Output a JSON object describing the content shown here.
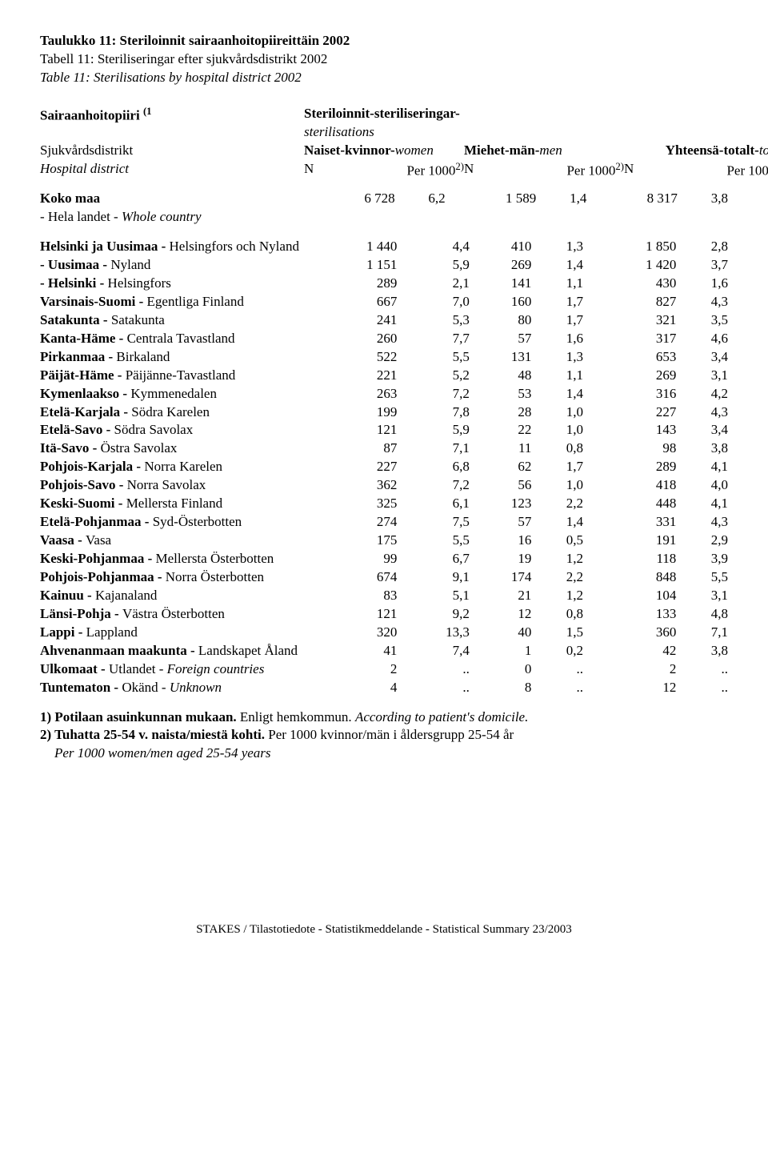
{
  "titles": {
    "fi": "Taulukko 11: Steriloinnit sairaanhoitopiireittäin 2002",
    "sv": "Tabell 11: Steriliseringar efter sjukvårdsdistrikt 2002",
    "en": "Table 11: Sterilisations by hospital district 2002"
  },
  "headers": {
    "row_label_fi": "Sairaanhoitopiiri",
    "row_label_fi_sup": "(1",
    "row_label_sv": "Sjukvårdsdistrikt",
    "row_label_en": "Hospital district",
    "group_header": "Steriloinnit-steriliseringar-",
    "group_header_italic": "sterilisations",
    "naiset": "Naiset-kvinnor-",
    "naiset_italic": "women",
    "miehet": "Miehet-män-",
    "miehet_italic": "men",
    "yhteensa": "Yhteensä-totalt-",
    "yhteensa_italic": "total",
    "N": "N",
    "per1000": "Per 1000",
    "per1000_sup": "2)"
  },
  "totals": {
    "label_bold": "Koko maa",
    "label_plain": " - Hela landet - ",
    "label_italic": "Whole country",
    "n1": "6 728",
    "p1": "6,2",
    "n2": "1 589",
    "p2": "1,4",
    "n3": "8 317",
    "p3": "3,8"
  },
  "rows": [
    {
      "bold": "Helsinki ja Uusimaa -",
      "plain": " Helsingfors och Nyland",
      "italic": "",
      "n1": "1 440",
      "p1": "4,4",
      "n2": "410",
      "p2": "1,3",
      "n3": "1 850",
      "p3": "2,8"
    },
    {
      "bold": "-  Uusimaa - ",
      "plain": "Nyland",
      "italic": "",
      "n1": "1 151",
      "p1": "5,9",
      "n2": "269",
      "p2": "1,4",
      "n3": "1 420",
      "p3": "3,7"
    },
    {
      "bold": "-  Helsinki - ",
      "plain": "Helsingfors",
      "italic": "",
      "n1": "289",
      "p1": "2,1",
      "n2": "141",
      "p2": "1,1",
      "n3": "430",
      "p3": "1,6"
    },
    {
      "bold": "Varsinais-Suomi - ",
      "plain": "Egentliga Finland",
      "italic": "",
      "n1": "667",
      "p1": "7,0",
      "n2": "160",
      "p2": "1,7",
      "n3": "827",
      "p3": "4,3"
    },
    {
      "bold": "Satakunta - ",
      "plain": "Satakunta",
      "italic": "",
      "n1": "241",
      "p1": "5,3",
      "n2": "80",
      "p2": "1,7",
      "n3": "321",
      "p3": "3,5"
    },
    {
      "bold": "Kanta-Häme - ",
      "plain": "Centrala Tavastland",
      "italic": "",
      "n1": "260",
      "p1": "7,7",
      "n2": "57",
      "p2": "1,6",
      "n3": "317",
      "p3": "4,6"
    },
    {
      "bold": "Pirkanmaa - ",
      "plain": "Birkaland",
      "italic": "",
      "n1": "522",
      "p1": "5,5",
      "n2": "131",
      "p2": "1,3",
      "n3": "653",
      "p3": "3,4"
    },
    {
      "bold": "Päijät-Häme - ",
      "plain": "Päijänne-Tavastland",
      "italic": "",
      "n1": "221",
      "p1": "5,2",
      "n2": "48",
      "p2": "1,1",
      "n3": "269",
      "p3": "3,1"
    },
    {
      "bold": "Kymenlaakso - ",
      "plain": "Kymmenedalen",
      "italic": "",
      "n1": "263",
      "p1": "7,2",
      "n2": "53",
      "p2": "1,4",
      "n3": "316",
      "p3": "4,2"
    },
    {
      "bold": "Etelä-Karjala - ",
      "plain": "Södra Karelen",
      "italic": "",
      "n1": "199",
      "p1": "7,8",
      "n2": "28",
      "p2": "1,0",
      "n3": "227",
      "p3": "4,3"
    },
    {
      "bold": "Etelä-Savo - ",
      "plain": "Södra Savolax",
      "italic": "",
      "n1": "121",
      "p1": "5,9",
      "n2": "22",
      "p2": "1,0",
      "n3": "143",
      "p3": "3,4"
    },
    {
      "bold": "Itä-Savo - ",
      "plain": "Östra Savolax",
      "italic": "",
      "n1": "87",
      "p1": "7,1",
      "n2": "11",
      "p2": "0,8",
      "n3": "98",
      "p3": "3,8"
    },
    {
      "bold": "Pohjois-Karjala - ",
      "plain": "Norra Karelen",
      "italic": "",
      "n1": "227",
      "p1": "6,8",
      "n2": "62",
      "p2": "1,7",
      "n3": "289",
      "p3": "4,1"
    },
    {
      "bold": "Pohjois-Savo - ",
      "plain": "Norra Savolax",
      "italic": "",
      "n1": "362",
      "p1": "7,2",
      "n2": "56",
      "p2": "1,0",
      "n3": "418",
      "p3": "4,0"
    },
    {
      "bold": "Keski-Suomi - ",
      "plain": "Mellersta Finland",
      "italic": "",
      "n1": "325",
      "p1": "6,1",
      "n2": "123",
      "p2": "2,2",
      "n3": "448",
      "p3": "4,1"
    },
    {
      "bold": "Etelä-Pohjanmaa - ",
      "plain": "Syd-Österbotten",
      "italic": "",
      "n1": "274",
      "p1": "7,5",
      "n2": "57",
      "p2": "1,4",
      "n3": "331",
      "p3": "4,3"
    },
    {
      "bold": "Vaasa - ",
      "plain": "Vasa",
      "italic": "",
      "n1": "175",
      "p1": "5,5",
      "n2": "16",
      "p2": "0,5",
      "n3": "191",
      "p3": "2,9"
    },
    {
      "bold": "Keski-Pohjanmaa - ",
      "plain": "Mellersta Österbotten",
      "italic": "",
      "n1": "99",
      "p1": "6,7",
      "n2": "19",
      "p2": "1,2",
      "n3": "118",
      "p3": "3,9"
    },
    {
      "bold": "Pohjois-Pohjanmaa - ",
      "plain": "Norra Österbotten",
      "italic": "",
      "n1": "674",
      "p1": "9,1",
      "n2": "174",
      "p2": "2,2",
      "n3": "848",
      "p3": "5,5"
    },
    {
      "bold": "Kainuu - ",
      "plain": "Kajanaland",
      "italic": "",
      "n1": "83",
      "p1": "5,1",
      "n2": "21",
      "p2": "1,2",
      "n3": "104",
      "p3": "3,1"
    },
    {
      "bold": "Länsi-Pohja - ",
      "plain": "Västra Österbotten",
      "italic": "",
      "n1": "121",
      "p1": "9,2",
      "n2": "12",
      "p2": "0,8",
      "n3": "133",
      "p3": "4,8"
    },
    {
      "bold": "Lappi - ",
      "plain": "Lappland",
      "italic": "",
      "n1": "320",
      "p1": "13,3",
      "n2": "40",
      "p2": "1,5",
      "n3": "360",
      "p3": "7,1"
    },
    {
      "bold": "Ahvenanmaan maakunta - ",
      "plain": "Landskapet Åland",
      "italic": "",
      "n1": "41",
      "p1": "7,4",
      "n2": "1",
      "p2": "0,2",
      "n3": "42",
      "p3": "3,8"
    },
    {
      "bold": "Ulkomaat - ",
      "plain": "Utlandet - ",
      "italic": "Foreign countries",
      "n1": "2",
      "p1": "..",
      "n2": "0",
      "p2": "..",
      "n3": "2",
      "p3": ".."
    },
    {
      "bold": "Tuntematon - ",
      "plain": "Okänd - ",
      "italic": "Unknown",
      "n1": "4",
      "p1": "..",
      "n2": "8",
      "p2": "..",
      "n3": "12",
      "p3": ".."
    }
  ],
  "footnotes": {
    "f1_bold": "1) Potilaan asuinkunnan mukaan.",
    "f1_plain": " Enligt hemkommun. ",
    "f1_italic": "According to patient's domicile.",
    "f2_bold": "2) Tuhatta 25-54 v. naista/miestä kohti.",
    "f2_plain": " Per 1000 kvinnor/män i åldersgrupp 25-54 år",
    "f2_italic": "Per 1000 women/men aged 25-54 years"
  },
  "footer": "STAKES / Tilastotiedote - Statistikmeddelande - Statistical Summary 23/2003"
}
